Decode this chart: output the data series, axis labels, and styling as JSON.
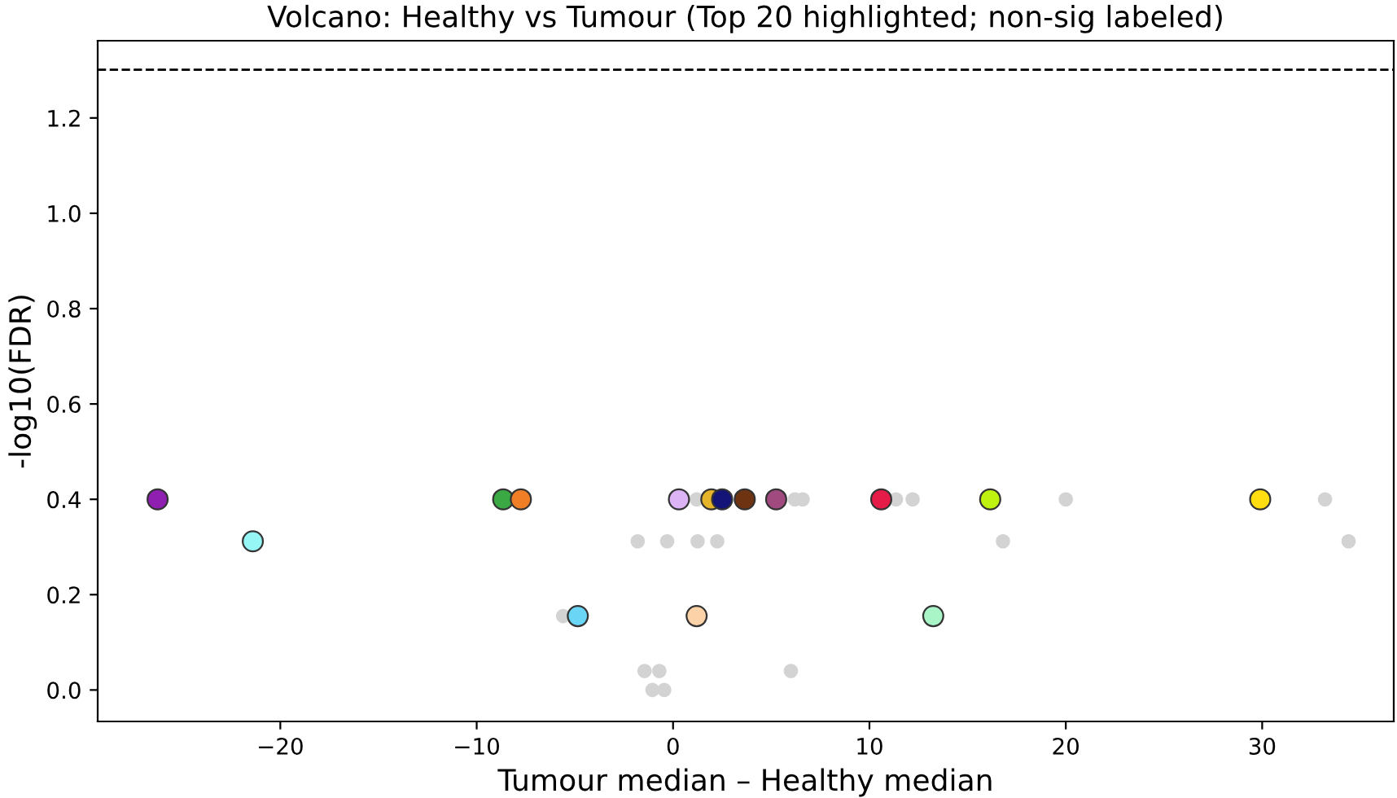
{
  "chart_data": {
    "type": "scatter",
    "title": "Volcano: Healthy vs Tumour (Top 20 highlighted; non-sig labeled)",
    "xlabel": "Tumour median – Healthy median",
    "ylabel": "-log10(FDR)",
    "xlim": [
      -29.3,
      36.7
    ],
    "xticks": [
      {
        "value": -20,
        "label": "−20"
      },
      {
        "value": -10,
        "label": "−10"
      },
      0,
      10,
      20,
      30
    ],
    "ylim": [
      -0.066,
      1.362
    ],
    "yticks": [
      {
        "value": 0,
        "label": "0.0"
      },
      0.2,
      0.4,
      0.6,
      0.8,
      {
        "value": 1.0,
        "label": "1.0"
      },
      1.2
    ],
    "grid": false,
    "marker": "circle",
    "legend": false,
    "ref_lines": [
      {
        "axis": "y",
        "value": 1.301,
        "label": null,
        "color": "#000000",
        "line_style": "dashed"
      }
    ],
    "series": [
      {
        "color": "#d3d3d3",
        "x": [
          1.2,
          6.2,
          6.6,
          11.35,
          12.2,
          20.0,
          33.2,
          -1.8,
          -0.3,
          1.25,
          2.25,
          16.8,
          34.4,
          -5.6,
          -1.45,
          -0.7,
          6.0,
          -1.05,
          -0.45
        ],
        "values": [
          0.4,
          0.4,
          0.4,
          0.4,
          0.4,
          0.4,
          0.4,
          0.312,
          0.312,
          0.312,
          0.312,
          0.312,
          0.312,
          0.155,
          0.04,
          0.04,
          0.04,
          0.0,
          0.0
        ]
      },
      {
        "x": [
          -26.25,
          -21.4,
          -8.65,
          -7.75,
          -4.85,
          0.3,
          1.95,
          2.5,
          3.65,
          5.25,
          1.2,
          10.6,
          16.15,
          13.25,
          29.9
        ],
        "values": [
          0.4,
          0.312,
          0.4,
          0.4,
          0.155,
          0.4,
          0.4,
          0.4,
          0.4,
          0.4,
          0.155,
          0.4,
          0.4,
          0.155,
          0.4
        ],
        "colors": [
          "#8e1fb0",
          "#96f5f5",
          "#3aa843",
          "#f07e26",
          "#6ad5f5",
          "#dcb4f5",
          "#e6b42a",
          "#141478",
          "#6e3412",
          "#a04a80",
          "#fcd2a8",
          "#e61c48",
          "#bff20f",
          "#aaf5c8",
          "#ffdd11"
        ]
      }
    ]
  }
}
